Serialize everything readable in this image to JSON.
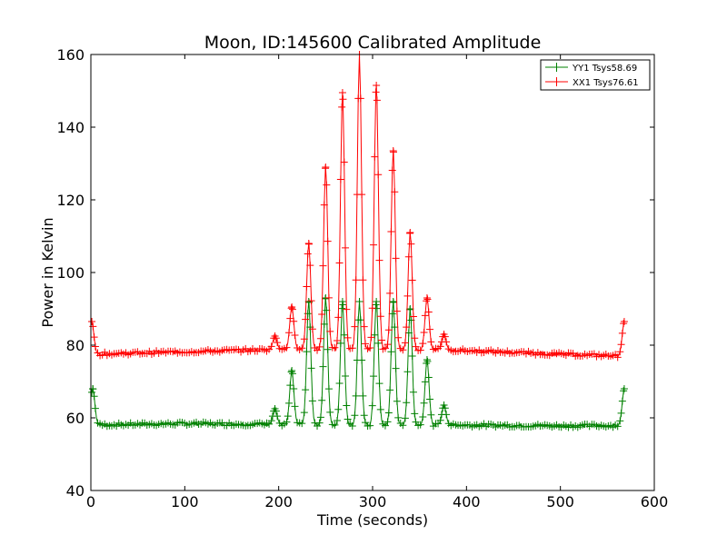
{
  "chart_data": {
    "type": "line",
    "title": "Moon, ID:145600 Calibrated Amplitude",
    "xlabel": "Time (seconds)",
    "ylabel": "Power in Kelvin",
    "xlim": [
      0,
      600
    ],
    "ylim": [
      40,
      160
    ],
    "xticks": [
      0,
      100,
      200,
      300,
      400,
      500,
      600
    ],
    "yticks": [
      40,
      60,
      80,
      100,
      120,
      140,
      160
    ],
    "grid": false,
    "legend_position": "top-right",
    "series": [
      {
        "name": "YY1 Tsys58.69",
        "color": "#008000",
        "baseline": [
          [
            0,
            58
          ],
          [
            100,
            58.4
          ],
          [
            200,
            58.2
          ],
          [
            300,
            58.1
          ],
          [
            400,
            58
          ],
          [
            500,
            57.8
          ],
          [
            568,
            57.9
          ]
        ],
        "peaks": [
          [
            2,
            68
          ],
          [
            196,
            62.5
          ],
          [
            214,
            73
          ],
          [
            232,
            92
          ],
          [
            250,
            93
          ],
          [
            268,
            92
          ],
          [
            286,
            92
          ],
          [
            304,
            92
          ],
          [
            322,
            92
          ],
          [
            340,
            90
          ],
          [
            358,
            76
          ],
          [
            376,
            63.5
          ],
          [
            568,
            68
          ]
        ]
      },
      {
        "name": "XX1 Tsys76.61",
        "color": "#ff0000",
        "baseline": [
          [
            0,
            77.5
          ],
          [
            100,
            78.2
          ],
          [
            200,
            78.8
          ],
          [
            300,
            79
          ],
          [
            400,
            78.5
          ],
          [
            500,
            77.5
          ],
          [
            568,
            77
          ]
        ],
        "peaks": [
          [
            1,
            86.5
          ],
          [
            196,
            82.5
          ],
          [
            214,
            90.5
          ],
          [
            232,
            108
          ],
          [
            250,
            129
          ],
          [
            268,
            149.5
          ],
          [
            286,
            160
          ],
          [
            304,
            151.5
          ],
          [
            322,
            133.5
          ],
          [
            340,
            111
          ],
          [
            358,
            93
          ],
          [
            376,
            83
          ],
          [
            568,
            86.5
          ]
        ]
      }
    ]
  }
}
